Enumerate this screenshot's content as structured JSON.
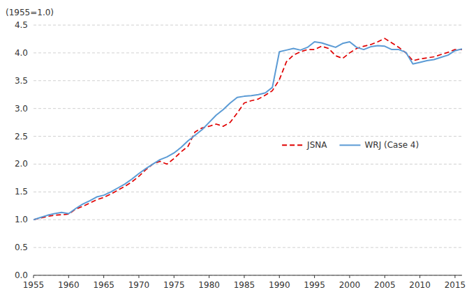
{
  "chart_data": {
    "type": "line",
    "ylabel": "(1955=1.0)",
    "x": [
      1955,
      1956,
      1957,
      1958,
      1959,
      1960,
      1961,
      1962,
      1963,
      1964,
      1965,
      1966,
      1967,
      1968,
      1969,
      1970,
      1971,
      1972,
      1973,
      1974,
      1975,
      1976,
      1977,
      1978,
      1979,
      1980,
      1981,
      1982,
      1983,
      1984,
      1985,
      1986,
      1987,
      1988,
      1989,
      1990,
      1991,
      1992,
      1993,
      1994,
      1995,
      1996,
      1997,
      1998,
      1999,
      2000,
      2001,
      2002,
      2003,
      2004,
      2005,
      2006,
      2007,
      2008,
      2009,
      2010,
      2011,
      2012,
      2013,
      2014,
      2015,
      2016
    ],
    "series": [
      {
        "name": "JSNA",
        "color": "#e00000",
        "line_style": "dashed",
        "values": [
          1.0,
          1.03,
          1.06,
          1.08,
          1.09,
          1.1,
          1.19,
          1.24,
          1.3,
          1.36,
          1.4,
          1.46,
          1.53,
          1.6,
          1.68,
          1.78,
          1.9,
          2.0,
          2.05,
          2.0,
          2.1,
          2.22,
          2.32,
          2.58,
          2.65,
          2.68,
          2.72,
          2.68,
          2.75,
          2.92,
          3.1,
          3.14,
          3.17,
          3.24,
          3.32,
          3.52,
          3.84,
          3.96,
          4.02,
          4.06,
          4.06,
          4.12,
          4.08,
          3.95,
          3.9,
          4.0,
          4.08,
          4.12,
          4.15,
          4.2,
          4.26,
          4.18,
          4.1,
          4.0,
          3.86,
          3.89,
          3.91,
          3.93,
          3.97,
          4.01,
          4.06,
          4.06
        ]
      },
      {
        "name": "WRJ (Case 4)",
        "color": "#5b9bd5",
        "line_style": "solid",
        "values": [
          1.0,
          1.04,
          1.08,
          1.11,
          1.13,
          1.11,
          1.2,
          1.28,
          1.34,
          1.41,
          1.44,
          1.5,
          1.57,
          1.64,
          1.73,
          1.83,
          1.92,
          2.0,
          2.08,
          2.13,
          2.2,
          2.3,
          2.42,
          2.52,
          2.62,
          2.75,
          2.88,
          2.98,
          3.1,
          3.2,
          3.22,
          3.23,
          3.25,
          3.28,
          3.38,
          4.02,
          4.05,
          4.08,
          4.05,
          4.1,
          4.2,
          4.18,
          4.14,
          4.1,
          4.17,
          4.2,
          4.1,
          4.06,
          4.11,
          4.13,
          4.12,
          4.06,
          4.06,
          4.01,
          3.8,
          3.83,
          3.86,
          3.88,
          3.92,
          3.96,
          4.04,
          4.07
        ]
      }
    ],
    "xlim": [
      1955,
      2016
    ],
    "ylim": [
      0.0,
      4.5
    ],
    "xticks": [
      1955,
      1960,
      1965,
      1970,
      1975,
      1980,
      1985,
      1990,
      1995,
      2000,
      2005,
      2010,
      2015
    ],
    "yticks": [
      {
        "value": 0.0,
        "label": "0.0"
      },
      0.5,
      {
        "value": 1.0,
        "label": "1.0"
      },
      1.5,
      {
        "value": 2.0,
        "label": "2.0"
      },
      2.5,
      {
        "value": 3.0,
        "label": "3.0"
      },
      3.5,
      {
        "value": 4.0,
        "label": "4.0"
      },
      4.5
    ],
    "grid": true,
    "legend": "right"
  }
}
